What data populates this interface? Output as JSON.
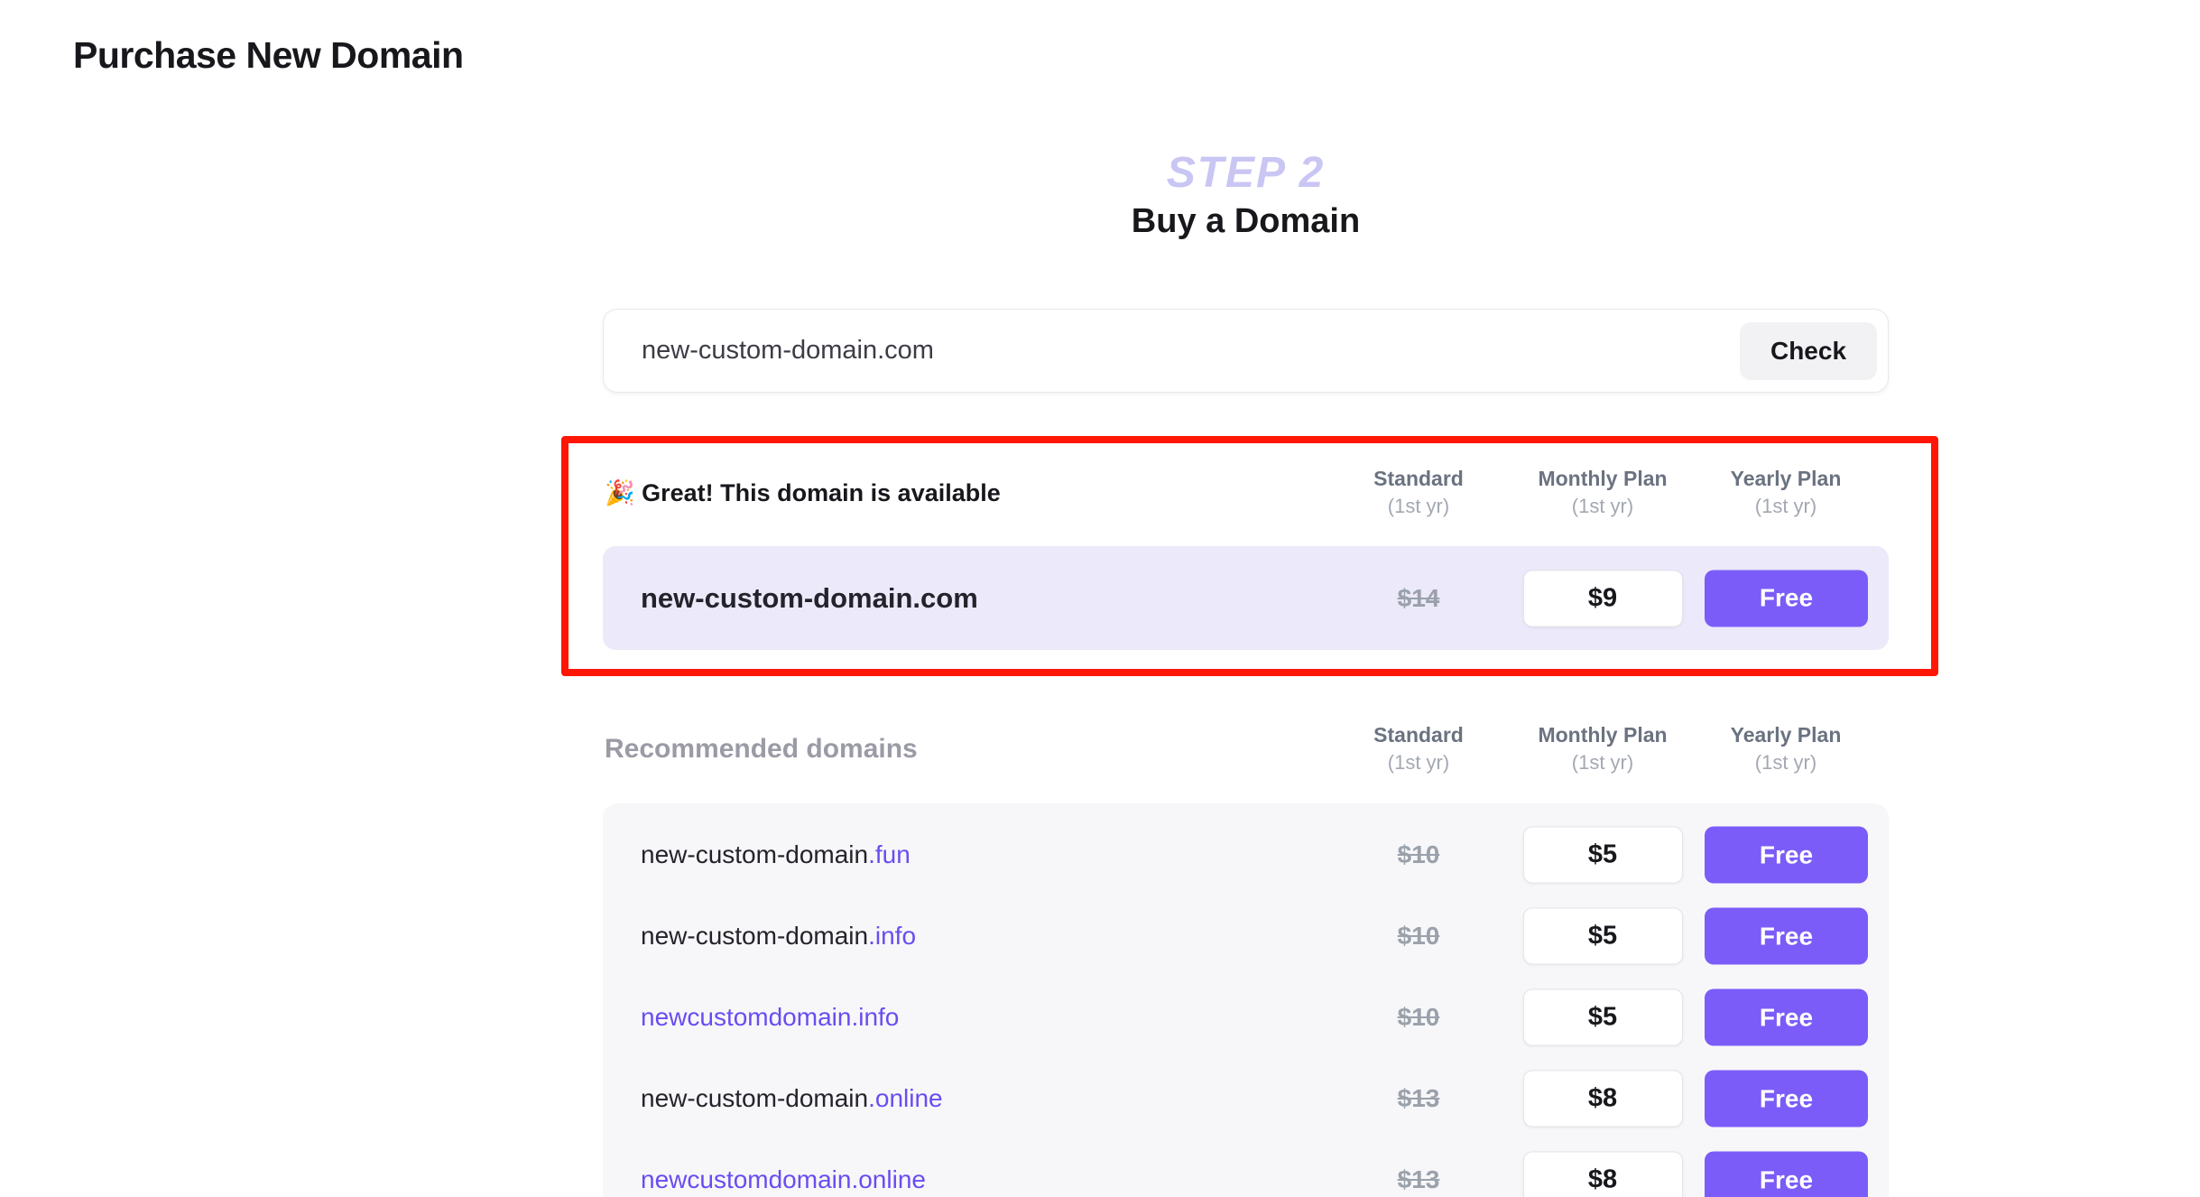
{
  "page": {
    "title": "Purchase New Domain"
  },
  "step": {
    "label": "STEP 2",
    "heading": "Buy a Domain"
  },
  "search": {
    "value": "new-custom-domain.com",
    "check_label": "Check"
  },
  "columns": {
    "standard": "Standard",
    "monthly": "Monthly Plan",
    "yearly": "Yearly Plan",
    "suffix": "(1st yr)"
  },
  "available": {
    "message": "🎉 Great! This domain is available",
    "domain": "new-custom-domain.com",
    "standard_price": "$14",
    "monthly_price": "$9",
    "yearly_label": "Free"
  },
  "recommended": {
    "heading": "Recommended domains",
    "rows": [
      {
        "base": "new-custom-domain",
        "tld": ".fun",
        "base_purple": false,
        "standard": "$10",
        "monthly": "$5",
        "yearly": "Free"
      },
      {
        "base": "new-custom-domain",
        "tld": ".info",
        "base_purple": false,
        "standard": "$10",
        "monthly": "$5",
        "yearly": "Free"
      },
      {
        "base": "newcustomdomain",
        "tld": ".info",
        "base_purple": true,
        "standard": "$10",
        "monthly": "$5",
        "yearly": "Free"
      },
      {
        "base": "new-custom-domain",
        "tld": ".online",
        "base_purple": false,
        "standard": "$13",
        "monthly": "$8",
        "yearly": "Free"
      },
      {
        "base": "newcustomdomain",
        "tld": ".online",
        "base_purple": true,
        "standard": "$13",
        "monthly": "$8",
        "yearly": "Free"
      }
    ]
  },
  "colors": {
    "accent_purple": "#7b5cf8",
    "link_purple": "#6a4cf1",
    "available_row_bg": "#ece9fa",
    "step_label": "#c9c6f4",
    "highlight_border": "#ff1605",
    "strike_price": "#9aa1ab"
  }
}
